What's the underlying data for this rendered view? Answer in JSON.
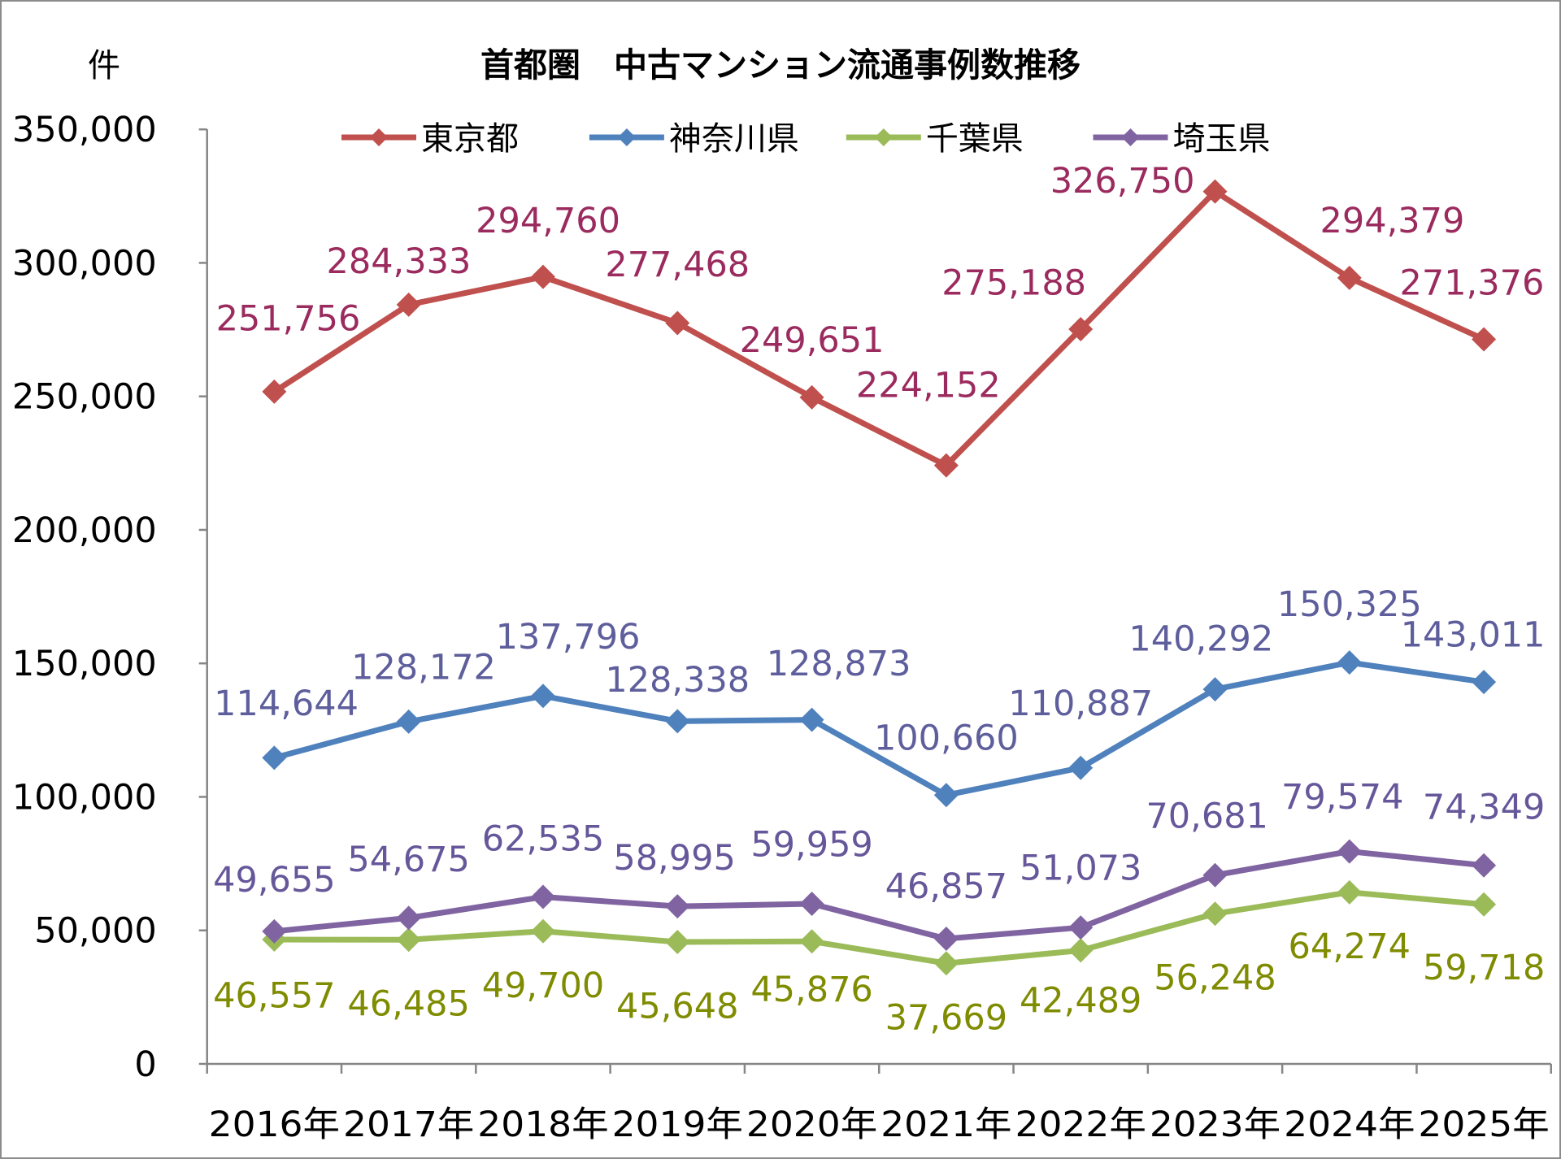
{
  "chart_data": {
    "type": "line",
    "title": "首都圏　中古マンション流通事例数推移",
    "ylabel": "件",
    "xlabel": "",
    "categories": [
      "2016年",
      "2017年",
      "2018年",
      "2019年",
      "2020年",
      "2021年",
      "2022年",
      "2023年",
      "2024年",
      "2025年"
    ],
    "ylim": [
      0,
      350000
    ],
    "yticks": [
      0,
      50000,
      100000,
      150000,
      200000,
      250000,
      300000,
      350000
    ],
    "ytick_labels": [
      "0",
      "50,000",
      "100,000",
      "150,000",
      "200,000",
      "250,000",
      "300,000",
      "350,000"
    ],
    "grid": false,
    "legend": "top",
    "marker": "diamond",
    "series": [
      {
        "name": "東京都",
        "color": "#C0504D",
        "label_color": "#9B2B5E",
        "values": [
          251756,
          284333,
          294760,
          277468,
          249651,
          224152,
          275188,
          326750,
          294379,
          271376
        ],
        "labels": [
          "251,756",
          "284,333",
          "294,760",
          "277,468",
          "249,651",
          "224,152",
          "275,188",
          "326,750",
          "294,379",
          "271,376"
        ]
      },
      {
        "name": "神奈川県",
        "color": "#4F81BD",
        "label_color": "#5E5E9C",
        "values": [
          114644,
          128172,
          137796,
          128338,
          128873,
          100660,
          110887,
          140292,
          150325,
          143011
        ],
        "labels": [
          "114,644",
          "128,172",
          "137,796",
          "128,338",
          "128,873",
          "100,660",
          "110,887",
          "140,292",
          "150,325",
          "143,011"
        ]
      },
      {
        "name": "千葉県",
        "color": "#9BBB59",
        "label_color": "#7F8C00",
        "values": [
          46557,
          46485,
          49700,
          45648,
          45876,
          37669,
          42489,
          56248,
          64274,
          59718
        ],
        "labels": [
          "46,557",
          "46,485",
          "49,700",
          "45,648",
          "45,876",
          "37,669",
          "42,489",
          "56,248",
          "64,274",
          "59,718"
        ]
      },
      {
        "name": "埼玉県",
        "color": "#8064A2",
        "label_color": "#66579A",
        "values": [
          49655,
          54675,
          62535,
          58995,
          59959,
          46857,
          51073,
          70681,
          79574,
          74349
        ],
        "labels": [
          "49,655",
          "54,675",
          "62,535",
          "58,995",
          "59,959",
          "46,857",
          "51,073",
          "70,681",
          "79,574",
          "74,349"
        ]
      }
    ]
  }
}
